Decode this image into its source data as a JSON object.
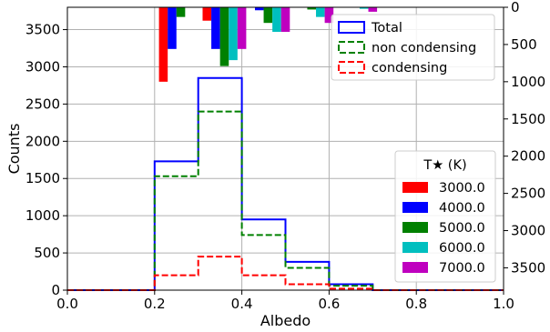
{
  "chart_data": {
    "type": "bar",
    "xlabel": "Albedo",
    "ylabel": "Counts",
    "xlim": [
      0.0,
      1.0
    ],
    "ylim": [
      0,
      3800
    ],
    "y2lim_inverted": [
      0,
      3800
    ],
    "grid": true,
    "x_ticks": [
      "0.0",
      "0.2",
      "0.4",
      "0.6",
      "0.8",
      "1.0"
    ],
    "y_ticks": [
      "0",
      "500",
      "1000",
      "1500",
      "2000",
      "2500",
      "3000",
      "3500"
    ],
    "y2_ticks": [
      "0",
      "500",
      "1000",
      "1500",
      "2000",
      "2500",
      "3000",
      "3500"
    ],
    "bin_edges": [
      0.0,
      0.1,
      0.2,
      0.3,
      0.4,
      0.5,
      0.6,
      0.7,
      0.8,
      0.9,
      1.0
    ],
    "histograms": [
      {
        "name": "Total",
        "style": "solid",
        "color": "#0000ff",
        "counts": [
          0,
          0,
          1730,
          2850,
          950,
          380,
          80,
          0,
          0,
          0
        ]
      },
      {
        "name": "non condensing",
        "style": "dashed",
        "color": "#008000",
        "counts": [
          0,
          0,
          1530,
          2400,
          740,
          300,
          60,
          0,
          0,
          0
        ]
      },
      {
        "name": "condensing",
        "style": "dashed",
        "color": "#ff0000",
        "counts": [
          0,
          0,
          200,
          450,
          200,
          80,
          20,
          0,
          0,
          0
        ]
      }
    ],
    "temperature_bars": {
      "axis": "right-inverted",
      "legend_title": "T★ (K)",
      "series": [
        {
          "name": "3000.0",
          "color": "#ff0000",
          "x": [
            0.22,
            0.32,
            0.42,
            0.52,
            0.62
          ],
          "values": [
            1000,
            180,
            0,
            0,
            0
          ]
        },
        {
          "name": "4000.0",
          "color": "#0000ff",
          "x": [
            0.24,
            0.34,
            0.44,
            0.54,
            0.64
          ],
          "values": [
            560,
            560,
            40,
            0,
            0
          ]
        },
        {
          "name": "5000.0",
          "color": "#008000",
          "x": [
            0.26,
            0.36,
            0.46,
            0.56,
            0.66
          ],
          "values": [
            130,
            790,
            210,
            30,
            0
          ]
        },
        {
          "name": "6000.0",
          "color": "#00bfbf",
          "x": [
            0.28,
            0.38,
            0.48,
            0.58,
            0.68
          ],
          "values": [
            0,
            710,
            330,
            130,
            20
          ]
        },
        {
          "name": "7000.0",
          "color": "#bf00bf",
          "x": [
            0.3,
            0.4,
            0.5,
            0.6,
            0.7
          ],
          "values": [
            0,
            560,
            330,
            210,
            60
          ]
        }
      ]
    },
    "legend_top": {
      "placement": "top-right",
      "entries": [
        "Total",
        "non condensing",
        "condensing"
      ]
    },
    "legend_bottom": {
      "placement": "lower-right"
    }
  }
}
